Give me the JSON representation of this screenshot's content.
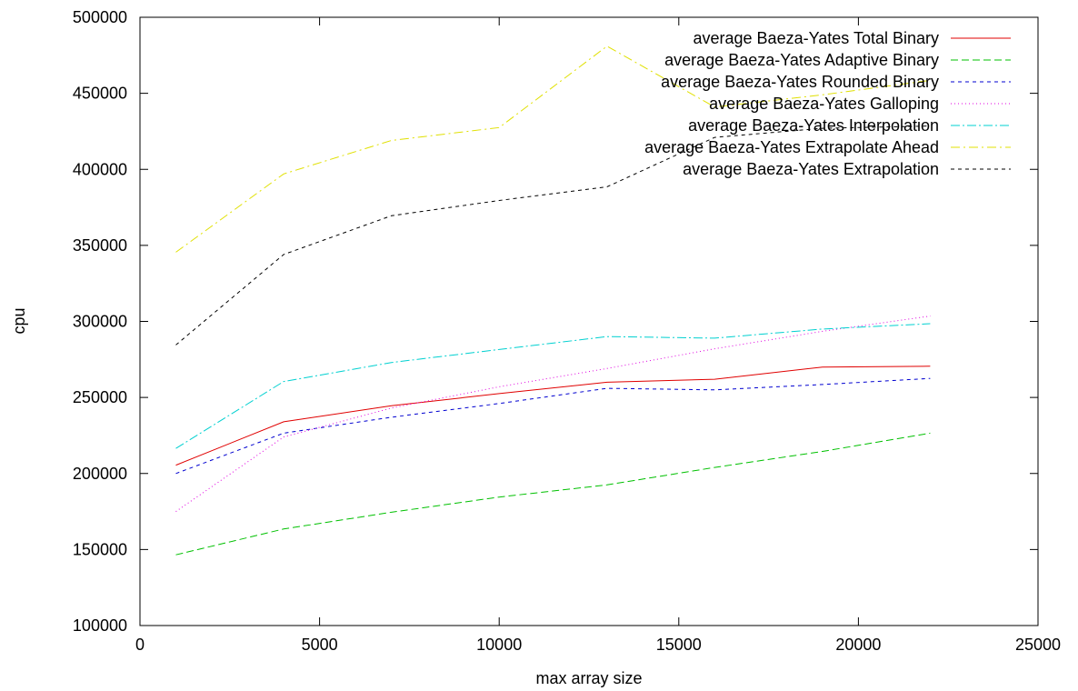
{
  "chart_data": {
    "type": "line",
    "xlabel": "max array size",
    "ylabel": "cpu",
    "xlim": [
      0,
      25000
    ],
    "ylim": [
      100000,
      500000
    ],
    "xticks": [
      "0",
      "5000",
      "10000",
      "15000",
      "20000",
      "25000"
    ],
    "yticks": [
      "100000",
      "150000",
      "200000",
      "250000",
      "300000",
      "350000",
      "400000",
      "450000",
      "500000"
    ],
    "grid": false,
    "legend_position": "top-right",
    "x": [
      1000,
      4000,
      7000,
      10000,
      13000,
      16000,
      19000,
      22000
    ],
    "series": [
      {
        "name": "average Baeza-Yates Total Binary",
        "color": "#e00000",
        "dash": "",
        "values": [
          205500,
          234000,
          244500,
          252500,
          260000,
          262000,
          270000,
          270500
        ]
      },
      {
        "name": "average Baeza-Yates Adaptive Binary",
        "color": "#00c000",
        "dash": "8,4",
        "values": [
          146500,
          163500,
          174500,
          184500,
          192500,
          204000,
          214500,
          226500
        ]
      },
      {
        "name": "average Baeza-Yates Rounded Binary",
        "color": "#0000d0",
        "dash": "4,4",
        "values": [
          200000,
          226500,
          237000,
          246000,
          256000,
          255000,
          258500,
          262500
        ]
      },
      {
        "name": "average Baeza-Yates Galloping",
        "color": "#e000e0",
        "dash": "1,3",
        "values": [
          175000,
          224000,
          243000,
          257000,
          269000,
          282000,
          293500,
          303500
        ]
      },
      {
        "name": "average Baeza-Yates Interpolation",
        "color": "#00d0d0",
        "dash": "10,3,2,3",
        "values": [
          216500,
          260500,
          273000,
          281500,
          290000,
          289000,
          295000,
          298500
        ]
      },
      {
        "name": "average Baeza-Yates Extrapolate Ahead",
        "color": "#e0e000",
        "dash": "10,4,2,4",
        "values": [
          345500,
          397000,
          419000,
          427500,
          481000,
          441000,
          449000,
          458500
        ]
      },
      {
        "name": "average Baeza-Yates Extrapolation",
        "color": "#000000",
        "dash": "4,4",
        "values": [
          284500,
          344000,
          369500,
          379500,
          388500,
          421000,
          427000,
          428500
        ]
      }
    ]
  }
}
